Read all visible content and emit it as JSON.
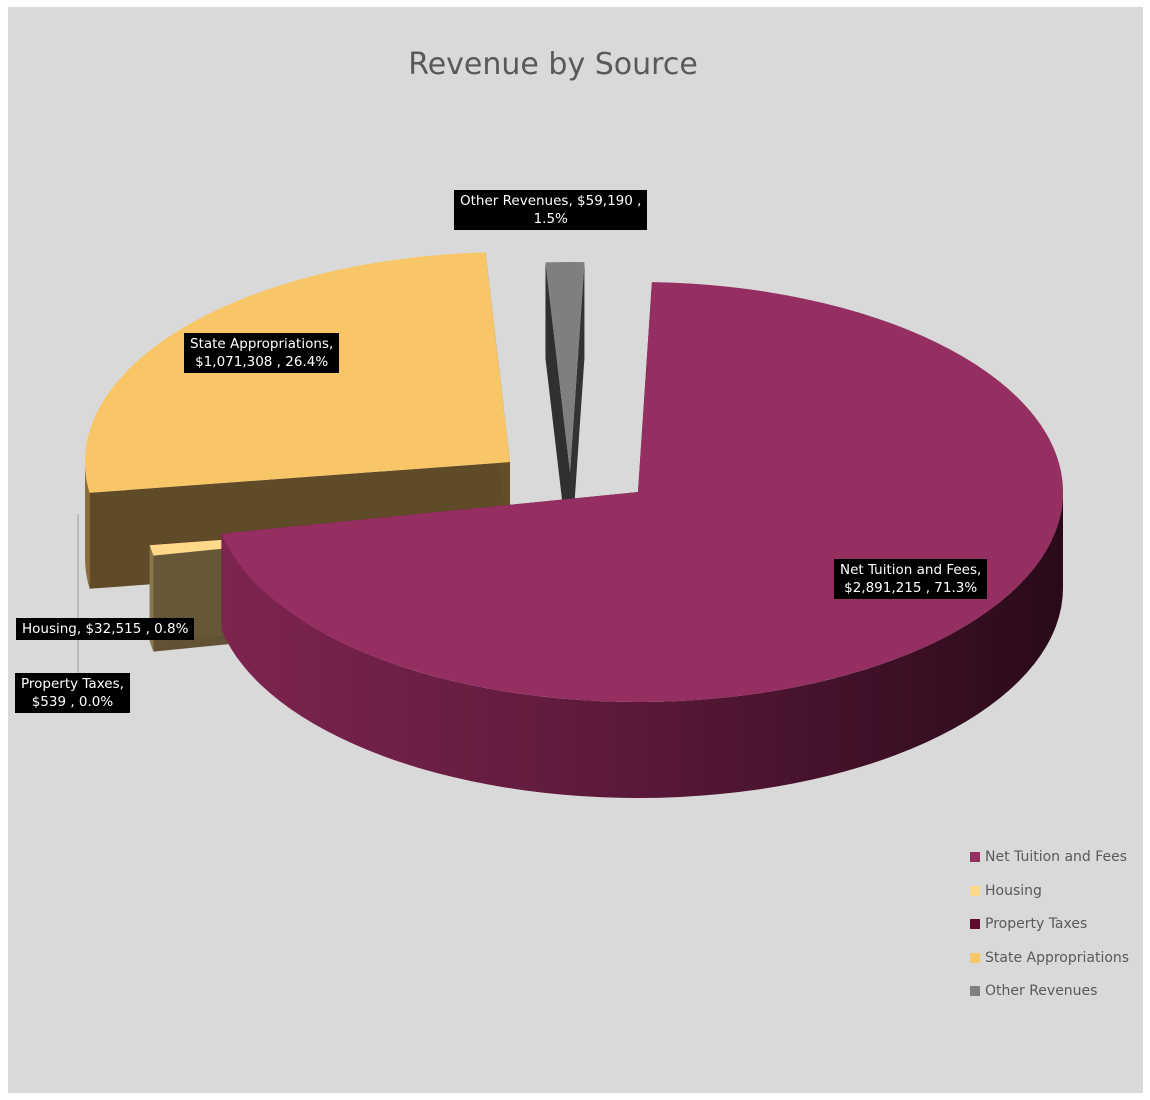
{
  "chart_data": {
    "type": "pie",
    "title": "Revenue by Source",
    "three_d": true,
    "legend_position": "bottom-right",
    "slices": [
      {
        "name": "Net Tuition and Fees",
        "value": 2891215,
        "percent": 71.3,
        "color": "#952f62",
        "label": "Net Tuition and Fees,\n$2,891,215 , 71.3%"
      },
      {
        "name": "Housing",
        "value": 32515,
        "percent": 0.8,
        "color": "#ffd98a",
        "label": "Housing,  $32,515 , 0.8%"
      },
      {
        "name": "Property Taxes",
        "value": 539,
        "percent": 0.0,
        "color": "#5e0b2e",
        "label": "Property Taxes,\n$539 , 0.0%"
      },
      {
        "name": "State Appropriations",
        "value": 1071308,
        "percent": 26.4,
        "color": "#f9c667",
        "label": "State Appropriations,\n$1,071,308 , 26.4%"
      },
      {
        "name": "Other Revenues",
        "value": 59190,
        "percent": 1.5,
        "color": "#7f7f7f",
        "label": "Other Revenues,  $59,190 ,\n1.5%"
      }
    ]
  }
}
